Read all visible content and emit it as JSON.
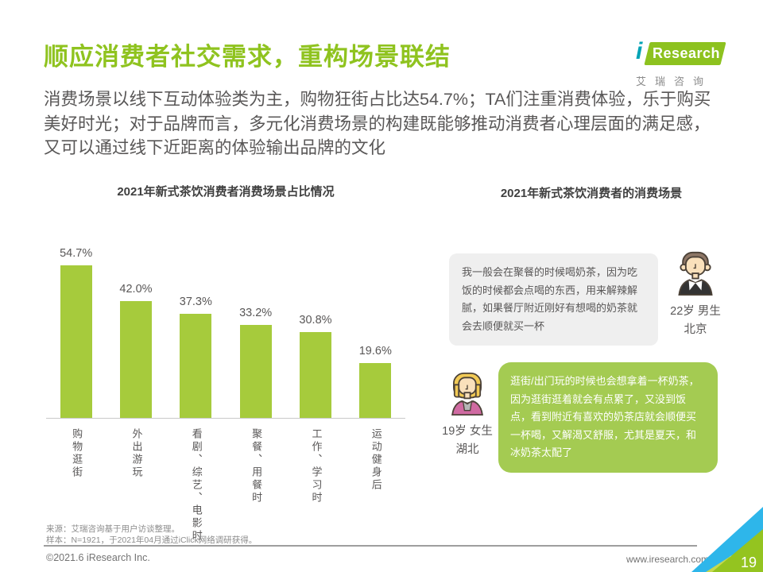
{
  "page": {
    "title": "顺应消费者社交需求，重构场景联结",
    "intro": "消费场景以线下互动体验类为主，购物狂街占比达54.7%；TA们注重消费体验，乐于购买美好时光；对于品牌而言，多元化消费场景的构建既能够推动消费者心理层面的满足感，又可以通过线下近距离的体验输出品牌的文化"
  },
  "logo": {
    "i": "i",
    "brand": "Research",
    "brand_cn": "艾瑞咨询"
  },
  "chart_data": {
    "type": "bar",
    "title": "2021年新式茶饮消费者消费场景占比情况",
    "categories": [
      "购物逛街",
      "外出游玩",
      "看剧、综艺、电影时",
      "聚餐、用餐时",
      "工作、学习时",
      "运动健身后"
    ],
    "values": [
      54.7,
      42.0,
      37.3,
      33.2,
      30.8,
      19.6
    ],
    "value_labels": [
      "54.7%",
      "42.0%",
      "37.3%",
      "33.2%",
      "30.8%",
      "19.6%"
    ],
    "unit": "%",
    "ylim": [
      0,
      60
    ],
    "grid": false,
    "legend": false,
    "bar_color": "#a6cb3c"
  },
  "right": {
    "title": "2021年新式茶饮消费者的消费场景",
    "quotes": [
      {
        "text": "我一般会在聚餐的时候喝奶茶，因为吃饭的时候都会点喝的东西，用来解辣解腻，如果餐厅附近刚好有想喝的奶茶就会去顺便就买一杯",
        "person": "22岁 男生",
        "location": "北京"
      },
      {
        "text": "逛街/出门玩的时候也会想拿着一杯奶茶，因为逛街逛着就会有点累了，又没到饭点，看到附近有喜欢的奶茶店就会顺便买一杯喝，又解渴又舒服，尤其是夏天，和冰奶茶太配了",
        "person": "19岁 女生",
        "location": "湖北"
      }
    ]
  },
  "footer": {
    "source": "来源：艾瑞咨询基于用户访谈整理。",
    "sample": "样本：N=1921，于2021年04月通过iClick网络调研获得。",
    "copyright": "©2021.6 iResearch Inc.",
    "website": "www.iresearch.com.cn",
    "page_number": "19"
  },
  "colors": {
    "title_green": "#8fc31f",
    "bar_green": "#a6cb3c",
    "quote_green": "#a4cb52",
    "corner_blue": "#2eb6ea",
    "text_gray": "#595757"
  }
}
